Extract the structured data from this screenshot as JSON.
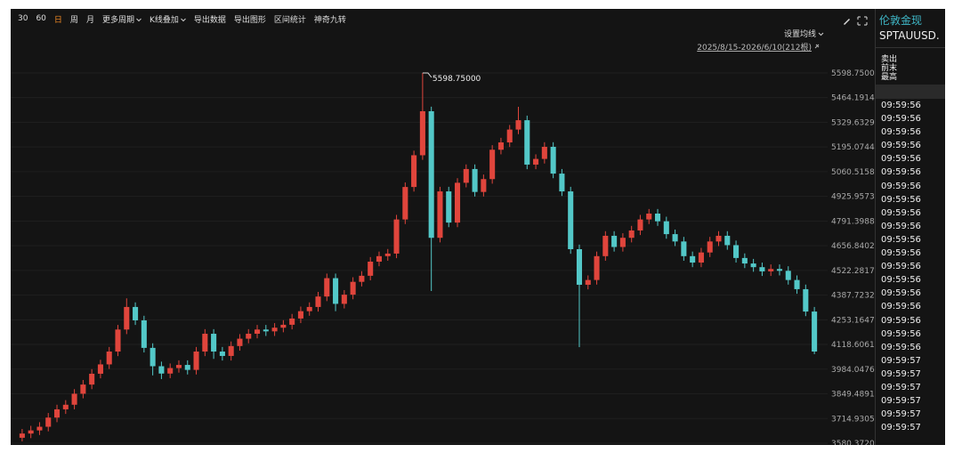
{
  "toolbar": {
    "items": [
      "30",
      "60",
      "日",
      "周",
      "月",
      "更多周期",
      "K线叠加",
      "导出数据",
      "导出图形",
      "区间统计",
      "神奇九转"
    ]
  },
  "chart_data": {
    "type": "candlestick",
    "ma_setting": "设置均线",
    "range_label": "2025/8/15-2026/6/10(212根)",
    "annotation": "5598.75000",
    "up_color": "#e0453c",
    "down_color": "#53c8c8",
    "grid": true,
    "open": [
      3610,
      3633,
      3650,
      3670,
      3720,
      3765,
      3790,
      3850,
      3900,
      3959,
      4010,
      4080,
      4200,
      4323,
      4250,
      4100,
      4000,
      3960,
      3990,
      4007,
      3980,
      4080,
      4177,
      4080,
      4056,
      4110,
      4150,
      4177,
      4200,
      4190,
      4210,
      4226,
      4260,
      4300,
      4323,
      4380,
      4480,
      4340,
      4390,
      4460,
      4493,
      4570,
      4600,
      4614,
      4800,
      4977,
      5150,
      5390,
      4700,
      4953,
      4783,
      5000,
      5075,
      4950,
      5020,
      5180,
      5220,
      5290,
      5341,
      5099,
      5130,
      5196,
      5050,
      4953,
      4638,
      4444,
      4470,
      4600,
      4711,
      4650,
      4700,
      4740,
      4800,
      4832,
      4790,
      4720,
      4680,
      4600,
      4565,
      4620,
      4680,
      4711,
      4660,
      4590,
      4560,
      4540,
      4517,
      4530,
      4520,
      4470,
      4420,
      4298
    ],
    "high": [
      3658,
      3675,
      3695,
      3745,
      3790,
      3815,
      3875,
      3925,
      3984,
      4035,
      4105,
      4225,
      4370,
      4348,
      4275,
      4125,
      4025,
      4015,
      4032,
      4032,
      4105,
      4202,
      4202,
      4105,
      4135,
      4175,
      4202,
      4225,
      4225,
      4235,
      4251,
      4285,
      4325,
      4348,
      4405,
      4505,
      4505,
      4415,
      4485,
      4518,
      4595,
      4625,
      4639,
      4825,
      5002,
      5175,
      5598.75,
      5415,
      4978,
      4978,
      5025,
      5100,
      5100,
      5045,
      5205,
      5245,
      5315,
      5414,
      5366,
      5155,
      5221,
      5221,
      5075,
      4978,
      4663,
      4495,
      4625,
      4736,
      4736,
      4725,
      4765,
      4825,
      4857,
      4857,
      4815,
      4745,
      4705,
      4625,
      4645,
      4705,
      4736,
      4736,
      4685,
      4615,
      4585,
      4565,
      4555,
      4555,
      4545,
      4495,
      4445,
      4323
    ],
    "low": [
      3590,
      3608,
      3625,
      3645,
      3695,
      3740,
      3765,
      3825,
      3875,
      3934,
      3985,
      4055,
      4175,
      4225,
      4075,
      3950,
      3930,
      3935,
      3965,
      3955,
      3955,
      4055,
      4040,
      4031,
      4031,
      4085,
      4125,
      4152,
      4165,
      4165,
      4185,
      4201,
      4235,
      4275,
      4298,
      4355,
      4300,
      4315,
      4365,
      4435,
      4468,
      4545,
      4575,
      4589,
      4775,
      4952,
      5125,
      4410,
      4675,
      4758,
      4758,
      4975,
      4925,
      4925,
      4995,
      5155,
      5195,
      5265,
      5074,
      5074,
      5105,
      5025,
      4928,
      4613,
      4104,
      4419,
      4445,
      4575,
      4625,
      4625,
      4675,
      4715,
      4775,
      4765,
      4695,
      4655,
      4575,
      4540,
      4540,
      4595,
      4655,
      4635,
      4565,
      4535,
      4515,
      4492,
      4492,
      4495,
      4445,
      4395,
      4273,
      4066
    ],
    "close": [
      3633,
      3650,
      3670,
      3720,
      3765,
      3790,
      3850,
      3900,
      3959,
      4010,
      4080,
      4200,
      4323,
      4250,
      4100,
      4000,
      3960,
      3990,
      4007,
      3980,
      4080,
      4177,
      4080,
      4056,
      4110,
      4150,
      4177,
      4200,
      4190,
      4210,
      4226,
      4260,
      4300,
      4323,
      4380,
      4480,
      4340,
      4390,
      4460,
      4493,
      4570,
      4600,
      4614,
      4800,
      4977,
      5150,
      5390,
      4700,
      4953,
      4783,
      5000,
      5075,
      4950,
      5020,
      5180,
      5220,
      5290,
      5341,
      5099,
      5130,
      5196,
      5050,
      4953,
      4638,
      4444,
      4470,
      4600,
      4711,
      4650,
      4700,
      4740,
      4800,
      4832,
      4790,
      4720,
      4680,
      4600,
      4565,
      4620,
      4680,
      4711,
      4660,
      4590,
      4560,
      4540,
      4517,
      4530,
      4520,
      4470,
      4420,
      4298,
      4080
    ],
    "ylim": [
      3580.37206,
      5778
    ],
    "yticks": [
      {
        "value": 5598.75,
        "label": "5598.75000"
      },
      5464.19147,
      5329.63294,
      5195.07441,
      5060.51588,
      4925.95735,
      4791.39882,
      4656.84029,
      4522.28176,
      4387.72324,
      4253.16471,
      4118.60618,
      3984.04765,
      3849.48912,
      3714.93059,
      3580.37206
    ]
  },
  "panel": {
    "title": "伦敦金现",
    "code": "SPTAUUSD.",
    "fields": [
      "卖出",
      "前末",
      "最高"
    ],
    "times": [
      "09:59:56",
      "09:59:56",
      "09:59:56",
      "09:59:56",
      "09:59:56",
      "09:59:56",
      "09:59:56",
      "09:59:56",
      "09:59:56",
      "09:59:56",
      "09:59:56",
      "09:59:56",
      "09:59:56",
      "09:59:56",
      "09:59:56",
      "09:59:56",
      "09:59:56",
      "09:59:56",
      "09:59:56",
      "09:59:57",
      "09:59:57",
      "09:59:57",
      "09:59:57",
      "09:59:57",
      "09:59:57"
    ]
  }
}
